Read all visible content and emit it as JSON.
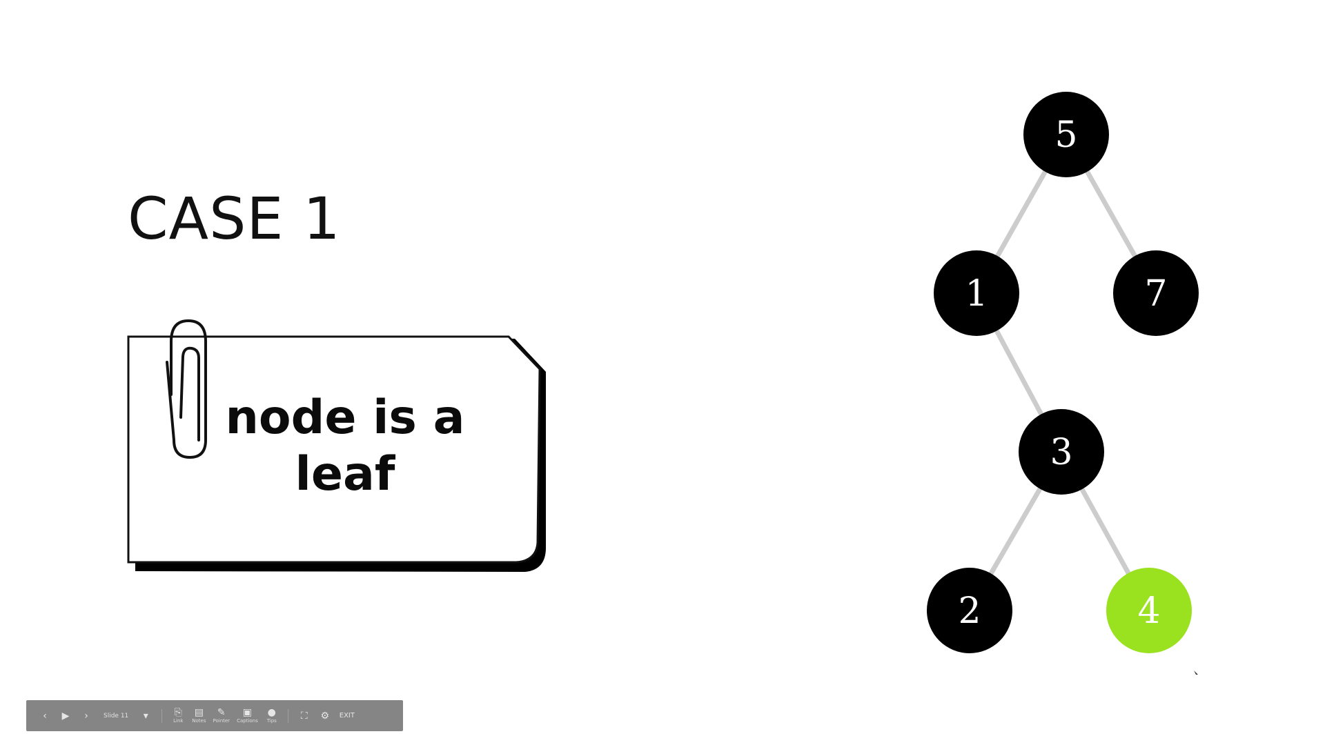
{
  "slide": {
    "title": "CASE 1",
    "note_text": "node is a leaf",
    "icons": [
      "paperclip-icon"
    ]
  },
  "tree": {
    "nodes": [
      {
        "id": "n5",
        "label": "5",
        "color": "#000000"
      },
      {
        "id": "n1",
        "label": "1",
        "color": "#000000"
      },
      {
        "id": "n7",
        "label": "7",
        "color": "#000000"
      },
      {
        "id": "n3",
        "label": "3",
        "color": "#000000"
      },
      {
        "id": "n2",
        "label": "2",
        "color": "#000000"
      },
      {
        "id": "n4",
        "label": "4",
        "color": "#9ae21f",
        "highlighted": true
      }
    ],
    "edges": [
      [
        "n5",
        "n1"
      ],
      [
        "n5",
        "n7"
      ],
      [
        "n1",
        "n3"
      ],
      [
        "n3",
        "n2"
      ],
      [
        "n3",
        "n4"
      ]
    ],
    "edge_color": "#cccccc",
    "highlight_color": "#9ae21f"
  },
  "toolbar": {
    "icons": [
      "prev-icon",
      "play-icon",
      "next-icon",
      "dropdown-icon",
      "link-icon",
      "notes-icon",
      "pointer-icon",
      "captions-icon",
      "settings-icon",
      "expand-icon",
      "gear-icon"
    ],
    "slide_label": "Slide 11",
    "buttons": [
      {
        "name": "link",
        "label": "Link"
      },
      {
        "name": "notes",
        "label": "Notes"
      },
      {
        "name": "pointer",
        "label": "Pointer"
      },
      {
        "name": "captions",
        "label": "Captions"
      },
      {
        "name": "settings",
        "label": "Tips"
      }
    ],
    "exit_label": "EXIT",
    "background": "#858585"
  }
}
